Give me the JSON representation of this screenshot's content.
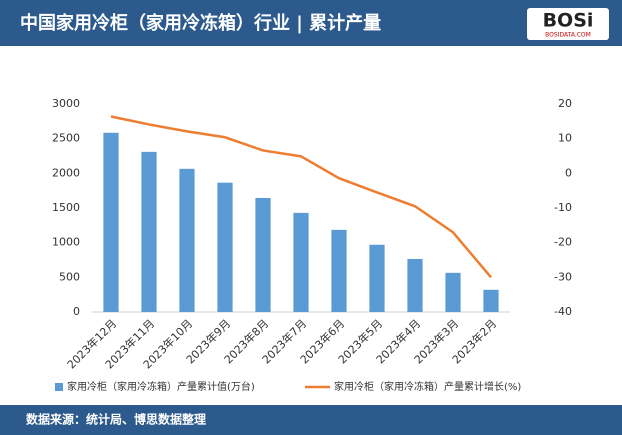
{
  "chart_data": {
    "type": "bar_line",
    "title": "中国家用冷柜（家用冷冻箱）行业 | 累计产量",
    "logo": "BOSi",
    "logo_sub": "BOSIDATA.COM",
    "source": "数据来源：统计局、博思数据整理",
    "categories": [
      "2023年12月",
      "2023年11月",
      "2023年10月",
      "2023年9月",
      "2023年8月",
      "2023年7月",
      "2023年6月",
      "2023年5月",
      "2023年4月",
      "2023年3月",
      "2023年2月"
    ],
    "series": [
      {
        "name": "家用冷柜（家用冷冻箱）产量累计值(万台)",
        "type": "bar",
        "axis": "y",
        "color": "#5b9bd5",
        "values": [
          2585,
          2310,
          2065,
          1865,
          1645,
          1430,
          1185,
          970,
          765,
          565,
          320
        ]
      },
      {
        "name": "家用冷柜（家用冷冻箱）产量累计增长(%)",
        "type": "line",
        "axis": "y2",
        "color": "#ed7d31",
        "values": [
          16.4,
          14.1,
          12.1,
          10.4,
          6.6,
          4.9,
          -1.4,
          -5.5,
          -9.5,
          -17.0,
          -30.0
        ]
      }
    ],
    "ylim": [
      0,
      3000
    ],
    "yticks": [
      0,
      500,
      1000,
      1500,
      2000,
      2500,
      3000
    ],
    "y2lim": [
      -40,
      20
    ],
    "y2ticks": [
      -40,
      -30,
      -20,
      -10,
      0,
      10,
      20
    ],
    "grid": false
  }
}
